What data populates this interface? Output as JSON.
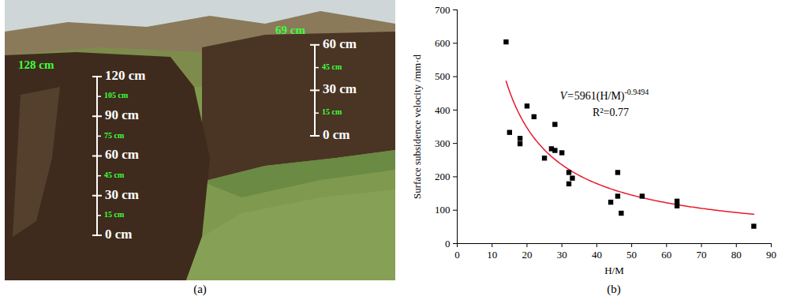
{
  "panel_labels": [
    "(a)",
    "(b)"
  ],
  "photo": {
    "rulers": [
      {
        "total": {
          "value": 128,
          "label": "128 cm"
        },
        "major": [
          {
            "value": 0,
            "label": "0 cm"
          },
          {
            "value": 30,
            "label": "30 cm"
          },
          {
            "value": 60,
            "label": "60 cm"
          },
          {
            "value": 90,
            "label": "90 cm"
          },
          {
            "value": 120,
            "label": "120 cm"
          }
        ],
        "minor": [
          {
            "value": 15,
            "label": "15 cm"
          },
          {
            "value": 45,
            "label": "45 cm"
          },
          {
            "value": 75,
            "label": "75 cm"
          },
          {
            "value": 105,
            "label": "105 cm"
          }
        ]
      },
      {
        "total": {
          "value": 69,
          "label": "69 cm"
        },
        "major": [
          {
            "value": 0,
            "label": "0 cm"
          },
          {
            "value": 30,
            "label": "30 cm"
          },
          {
            "value": 60,
            "label": "60 cm"
          }
        ],
        "minor": [
          {
            "value": 15,
            "label": "15 cm"
          },
          {
            "value": 45,
            "label": "45 cm"
          }
        ]
      }
    ]
  },
  "chart_data": {
    "type": "scatter",
    "x_label": "H/M",
    "y_label": "Surface subsidence velocity /mm·d",
    "x": [
      14,
      15,
      18,
      18,
      20,
      22,
      25,
      27,
      28,
      28,
      30,
      32,
      32,
      33,
      44,
      46,
      46,
      47,
      53,
      63,
      63,
      85
    ],
    "values": [
      604,
      333,
      315,
      299,
      412,
      380,
      256,
      284,
      357,
      279,
      272,
      213,
      179,
      196,
      124,
      213,
      142,
      91,
      142,
      127,
      113,
      52
    ],
    "marker": "square",
    "color": "#000000",
    "xlim": [
      0,
      90
    ],
    "xticks": [
      0,
      10,
      20,
      30,
      40,
      50,
      60,
      70,
      80,
      90
    ],
    "ylim": [
      0,
      700
    ],
    "yticks": [
      0,
      100,
      200,
      300,
      400,
      500,
      600,
      700
    ],
    "grid": false,
    "fit": {
      "type": "power",
      "coefficient": 5961,
      "exponent": -0.9494,
      "x_from": 14,
      "x_to": 85,
      "color": "#e8192c",
      "equation_prefix": "V=",
      "equation_base": "(H/M)",
      "r_squared_label": "R²=0.77"
    }
  }
}
